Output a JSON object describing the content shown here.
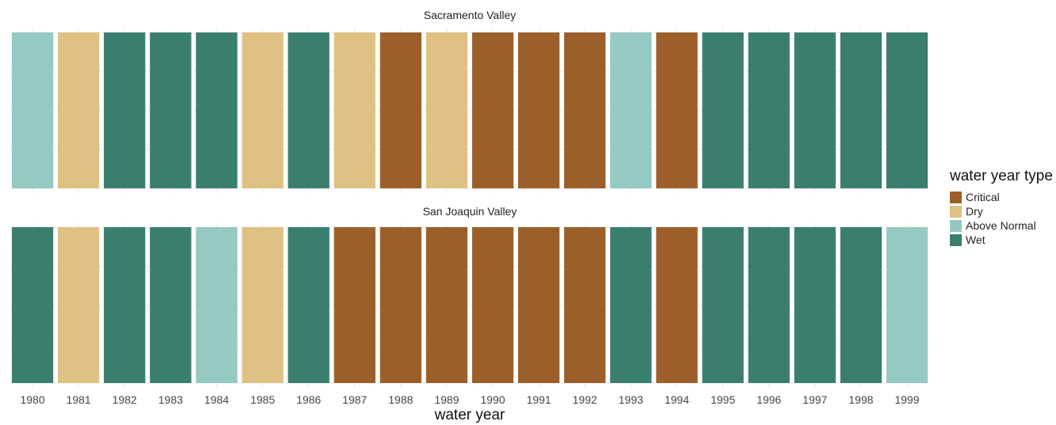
{
  "chart_data": {
    "type": "heatmap",
    "xlabel": "water year",
    "categories": [
      "1980",
      "1981",
      "1982",
      "1983",
      "1984",
      "1985",
      "1986",
      "1987",
      "1988",
      "1989",
      "1990",
      "1991",
      "1992",
      "1993",
      "1994",
      "1995",
      "1996",
      "1997",
      "1998",
      "1999"
    ],
    "facets": [
      {
        "title": "Sacramento Valley",
        "values": [
          "Above Normal",
          "Dry",
          "Wet",
          "Wet",
          "Wet",
          "Dry",
          "Wet",
          "Dry",
          "Critical",
          "Dry",
          "Critical",
          "Critical",
          "Critical",
          "Above Normal",
          "Critical",
          "Wet",
          "Wet",
          "Wet",
          "Wet",
          "Wet"
        ]
      },
      {
        "title": "San Joaquin Valley",
        "values": [
          "Wet",
          "Dry",
          "Wet",
          "Wet",
          "Above Normal",
          "Dry",
          "Wet",
          "Critical",
          "Critical",
          "Critical",
          "Critical",
          "Critical",
          "Critical",
          "Wet",
          "Critical",
          "Wet",
          "Wet",
          "Wet",
          "Wet",
          "Above Normal"
        ]
      }
    ],
    "legend": {
      "title": "water year type",
      "position": "right",
      "items": [
        {
          "label": "Critical",
          "color": "#9c5f2a"
        },
        {
          "label": "Dry",
          "color": "#dfc183"
        },
        {
          "label": "Above Normal",
          "color": "#95c9c1"
        },
        {
          "label": "Wet",
          "color": "#3a7f6e"
        }
      ]
    },
    "grid": true
  }
}
